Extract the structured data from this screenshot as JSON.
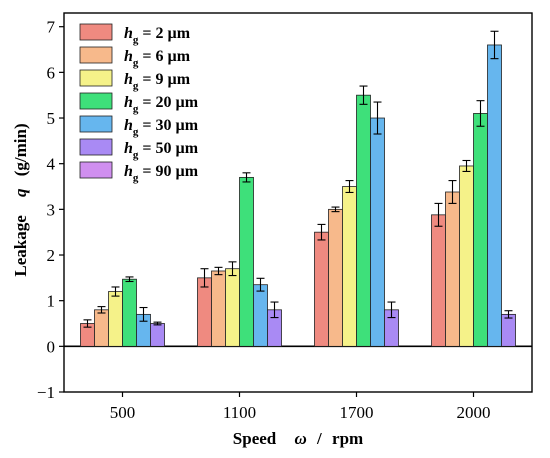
{
  "chart_data": {
    "type": "bar",
    "categories": [
      "500",
      "1100",
      "1700",
      "2000"
    ],
    "ylim": [
      -1,
      7.3
    ],
    "yticks": [
      -1,
      0,
      1,
      2,
      3,
      4,
      5,
      6,
      7
    ],
    "xlabel": {
      "label": "Speed",
      "symbol": "ω",
      "unit": "rpm"
    },
    "ylabel": {
      "label": "Leakage",
      "symbol": "q",
      "unit": "(g/min)"
    },
    "grid": false,
    "legend_position": "top-left",
    "series": [
      {
        "name": "h_g = 2 µm",
        "symbol": "h",
        "sub": "g",
        "value_text": "= 2 µm",
        "color": "#ef8a80",
        "values": [
          0.5,
          1.5,
          2.5,
          2.88
        ],
        "errors": [
          0.08,
          0.2,
          0.17,
          0.25
        ]
      },
      {
        "name": "h_g = 6 µm",
        "symbol": "h",
        "sub": "g",
        "value_text": "= 6 µm",
        "color": "#f7b98b",
        "values": [
          0.8,
          1.65,
          3.0,
          3.38
        ],
        "errors": [
          0.07,
          0.08,
          0.05,
          0.25
        ]
      },
      {
        "name": "h_g = 9 µm",
        "symbol": "h",
        "sub": "g",
        "value_text": "= 9 µm",
        "color": "#f5f289",
        "values": [
          1.2,
          1.7,
          3.5,
          3.95
        ],
        "errors": [
          0.1,
          0.15,
          0.13,
          0.12
        ]
      },
      {
        "name": "h_g = 20 µm",
        "symbol": "h",
        "sub": "g",
        "value_text": "= 20 µm",
        "color": "#3ee07a",
        "values": [
          1.47,
          3.7,
          5.5,
          5.1
        ],
        "errors": [
          0.05,
          0.1,
          0.2,
          0.28
        ]
      },
      {
        "name": "h_g = 30 µm",
        "symbol": "h",
        "sub": "g",
        "value_text": "= 30 µm",
        "color": "#66b6ee",
        "values": [
          0.7,
          1.35,
          5.0,
          6.6
        ],
        "errors": [
          0.15,
          0.14,
          0.35,
          0.3
        ]
      },
      {
        "name": "h_g = 50 µm",
        "symbol": "h",
        "sub": "g",
        "value_text": "= 50 µm",
        "color": "#a98af4",
        "values": [
          0.5,
          0.8,
          0.8,
          0.7
        ],
        "errors": [
          0.03,
          0.17,
          0.17,
          0.08
        ]
      },
      {
        "name": "h_g = 90 µm",
        "symbol": "h",
        "sub": "g",
        "value_text": "= 90 µm",
        "color": "#d08fef",
        "values": [
          null,
          null,
          null,
          null
        ],
        "errors": [
          null,
          null,
          null,
          null
        ]
      }
    ]
  }
}
